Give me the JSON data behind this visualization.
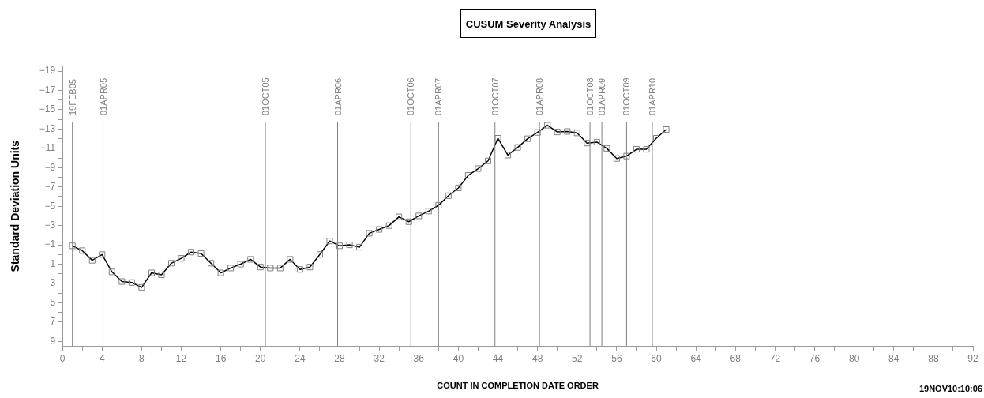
{
  "chart_data": {
    "type": "line",
    "title": "CUSUM Severity Analysis",
    "xlabel": "COUNT IN COMPLETION DATE ORDER",
    "ylabel": "Standard Deviation Units",
    "annotations": [
      "19NOV10:10:06"
    ],
    "x": [
      1,
      2,
      3,
      4,
      5,
      6,
      7,
      8,
      9,
      10,
      11,
      12,
      13,
      14,
      15,
      16,
      17,
      18,
      19,
      20,
      21,
      22,
      23,
      24,
      25,
      26,
      27,
      28,
      29,
      30,
      31,
      32,
      33,
      34,
      35,
      36,
      37,
      38,
      39,
      40,
      41,
      42,
      43,
      44,
      45,
      46,
      47,
      48,
      49,
      50,
      51,
      52,
      53,
      54,
      55,
      56,
      57,
      58,
      59,
      60,
      61
    ],
    "series": [
      {
        "color": "#000000",
        "values": [
          -0.9,
          -0.4,
          0.6,
          0.0,
          1.8,
          2.8,
          2.9,
          3.4,
          1.9,
          2.1,
          0.9,
          0.4,
          -0.25,
          -0.1,
          0.9,
          1.9,
          1.4,
          1.0,
          0.5,
          1.3,
          1.4,
          1.4,
          0.5,
          1.55,
          1.3,
          0.0,
          -1.4,
          -0.9,
          -1.0,
          -0.75,
          -2.2,
          -2.6,
          -3.0,
          -3.9,
          -3.4,
          -4.0,
          -4.5,
          -5.1,
          -6.1,
          -6.9,
          -8.2,
          -8.9,
          -9.7,
          -12.05,
          -10.3,
          -11.1,
          -12.0,
          -12.65,
          -13.4,
          -12.7,
          -12.75,
          -12.6,
          -11.55,
          -11.65,
          -11.0,
          -9.95,
          -10.2,
          -10.9,
          -10.9,
          -12.05,
          -12.95
        ]
      }
    ],
    "marker": "square",
    "line_style": "solid",
    "grid": false,
    "legend": false,
    "xlim": [
      0,
      92
    ],
    "xticks": [
      0,
      {
        "value": 2,
        "label": null
      },
      4,
      {
        "value": 6,
        "label": null
      },
      8,
      {
        "value": 10,
        "label": null
      },
      12,
      {
        "value": 14,
        "label": null
      },
      16,
      {
        "value": 18,
        "label": null
      },
      20,
      {
        "value": 22,
        "label": null
      },
      24,
      {
        "value": 26,
        "label": null
      },
      28,
      {
        "value": 30,
        "label": null
      },
      32,
      {
        "value": 34,
        "label": null
      },
      36,
      {
        "value": 38,
        "label": null
      },
      40,
      {
        "value": 42,
        "label": null
      },
      44,
      {
        "value": 46,
        "label": null
      },
      48,
      {
        "value": 50,
        "label": null
      },
      52,
      {
        "value": 54,
        "label": null
      },
      56,
      {
        "value": 58,
        "label": null
      },
      60,
      {
        "value": 62,
        "label": null
      },
      64,
      {
        "value": 66,
        "label": null
      },
      68,
      {
        "value": 70,
        "label": null
      },
      72,
      {
        "value": 74,
        "label": null
      },
      76,
      {
        "value": 78,
        "label": null
      },
      80,
      {
        "value": 82,
        "label": null
      },
      84,
      {
        "value": 86,
        "label": null
      },
      88,
      {
        "value": 90,
        "label": null
      },
      92
    ],
    "ylim": [
      9.5,
      -19.5
    ],
    "yticks": [
      -19,
      {
        "value": -18,
        "label": null
      },
      -17,
      {
        "value": -16,
        "label": null
      },
      -15,
      {
        "value": -14,
        "label": null
      },
      -13,
      {
        "value": -12,
        "label": null
      },
      -11,
      {
        "value": -10,
        "label": null
      },
      -9,
      {
        "value": -8,
        "label": null
      },
      -7,
      {
        "value": -6,
        "label": null
      },
      -5,
      {
        "value": -4,
        "label": null
      },
      -3,
      {
        "value": -2,
        "label": null
      },
      -1,
      {
        "value": 0,
        "label": null
      },
      1,
      {
        "value": 2,
        "label": null
      },
      3,
      {
        "value": 4,
        "label": null
      },
      5,
      {
        "value": 6,
        "label": null
      },
      7,
      {
        "value": 8,
        "label": null
      },
      9
    ],
    "ref_lines": [
      {
        "axis": "x",
        "value": 1,
        "label": "19FEB05",
        "color": "#808080"
      },
      {
        "axis": "x",
        "value": 4.1,
        "label": "01APR05",
        "color": "#808080"
      },
      {
        "axis": "x",
        "value": 20.5,
        "label": "01OCT05",
        "color": "#808080"
      },
      {
        "axis": "x",
        "value": 27.8,
        "label": "01APR06",
        "color": "#808080"
      },
      {
        "axis": "x",
        "value": 35.2,
        "label": "01OCT06",
        "color": "#808080"
      },
      {
        "axis": "x",
        "value": 38.0,
        "label": "01APR07",
        "color": "#808080"
      },
      {
        "axis": "x",
        "value": 43.7,
        "label": "01OCT07",
        "color": "#808080"
      },
      {
        "axis": "x",
        "value": 48.2,
        "label": "01APR08",
        "color": "#808080"
      },
      {
        "axis": "x",
        "value": 53.3,
        "label": "01OCT08",
        "color": "#808080"
      },
      {
        "axis": "x",
        "value": 54.5,
        "label": "01APR09",
        "color": "#808080"
      },
      {
        "axis": "x",
        "value": 57.0,
        "label": "01OCT09",
        "color": "#808080"
      },
      {
        "axis": "x",
        "value": 59.6,
        "label": "01APR10",
        "color": "#808080"
      }
    ]
  }
}
